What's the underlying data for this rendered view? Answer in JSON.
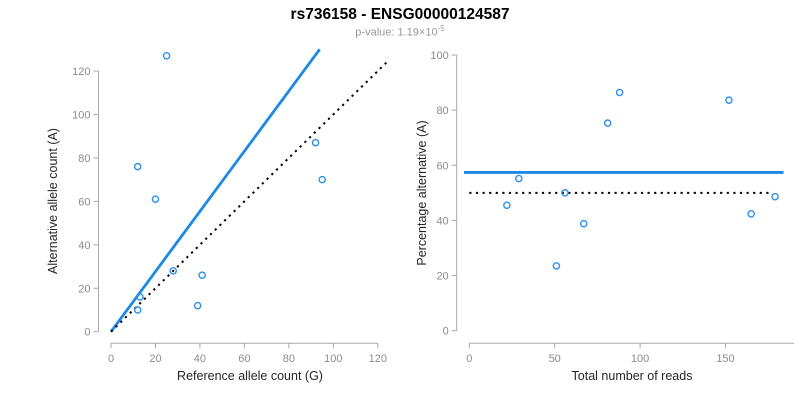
{
  "header": {
    "title": "rs736158 - ENSG00000124587",
    "p_value_label": "p-value: 1.19×10",
    "p_value_exponent": "-5"
  },
  "colors": {
    "accent_blue": "#1E88E5",
    "point_blue": "#2D90E8",
    "line_black": "#000000",
    "axis_line": "#A9A9A9",
    "tick_label": "#8C8C8C",
    "axis_title": "#262626",
    "title": "#000000",
    "subtitle": "#999999",
    "background": "#FFFFFF"
  },
  "chart_data": [
    {
      "id": "allele-counts-scatter",
      "type": "scatter",
      "xlabel": "Reference allele count (G)",
      "ylabel": "Alternative allele count (A)",
      "xticks": [
        0,
        20,
        40,
        60,
        80,
        100,
        120
      ],
      "yticks": [
        0,
        20,
        40,
        60,
        80,
        100,
        120
      ],
      "xlim": [
        0,
        125
      ],
      "ylim": [
        0,
        130
      ],
      "grid": false,
      "points": [
        {
          "x": 25,
          "y": 127
        },
        {
          "x": 12,
          "y": 76
        },
        {
          "x": 20,
          "y": 61
        },
        {
          "x": 92,
          "y": 87
        },
        {
          "x": 95,
          "y": 70
        },
        {
          "x": 28,
          "y": 28
        },
        {
          "x": 41,
          "y": 26
        },
        {
          "x": 39,
          "y": 12
        },
        {
          "x": 13,
          "y": 16
        },
        {
          "x": 12,
          "y": 10
        }
      ],
      "lines": [
        {
          "name": "fitted-ratio-line",
          "kind": "slope",
          "slope": 1.385,
          "intercept": 0,
          "style": "solid",
          "color_key": "accent_blue",
          "width": 2.8
        },
        {
          "name": "identity-line",
          "kind": "slope",
          "slope": 1,
          "intercept": 0,
          "style": "dotted",
          "color_key": "line_black",
          "width": 2
        }
      ]
    },
    {
      "id": "percentage-alternative-scatter",
      "type": "scatter",
      "xlabel": "Total number of reads",
      "ylabel": "Percentage alternative (A)",
      "xticks": [
        0,
        50,
        100,
        150
      ],
      "yticks": [
        0,
        20,
        40,
        60,
        80,
        100
      ],
      "xlim": [
        0,
        190
      ],
      "ylim": [
        0,
        100
      ],
      "grid": false,
      "points": [
        {
          "x": 152,
          "y": 83.6
        },
        {
          "x": 88,
          "y": 86.4
        },
        {
          "x": 81,
          "y": 75.3
        },
        {
          "x": 179,
          "y": 48.6
        },
        {
          "x": 165,
          "y": 42.4
        },
        {
          "x": 56,
          "y": 50.0
        },
        {
          "x": 67,
          "y": 38.8
        },
        {
          "x": 51,
          "y": 23.5
        },
        {
          "x": 29,
          "y": 55.2
        },
        {
          "x": 22,
          "y": 45.5
        }
      ],
      "lines": [
        {
          "name": "mean-percentage-line",
          "kind": "horizontal",
          "value": 57.4,
          "style": "solid",
          "color_key": "accent_blue",
          "width": 2.8
        },
        {
          "name": "expected-50-line",
          "kind": "horizontal",
          "value": 50,
          "style": "dotted",
          "color_key": "line_black",
          "width": 2
        }
      ]
    }
  ]
}
